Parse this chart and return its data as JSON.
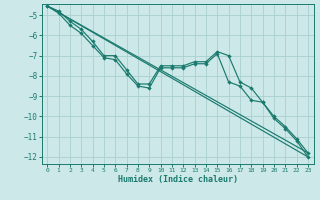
{
  "xlabel": "Humidex (Indice chaleur)",
  "bg_color": "#cce8e8",
  "grid_color": "#aacfcf",
  "line_color": "#1a7a6e",
  "xlim": [
    -0.5,
    23.5
  ],
  "ylim": [
    -12.35,
    -4.45
  ],
  "yticks": [
    -5,
    -6,
    -7,
    -8,
    -9,
    -10,
    -11,
    -12
  ],
  "xticks": [
    0,
    1,
    2,
    3,
    4,
    5,
    6,
    7,
    8,
    9,
    10,
    11,
    12,
    13,
    14,
    15,
    16,
    17,
    18,
    19,
    20,
    21,
    22,
    23
  ],
  "line1_x": [
    0,
    1,
    2,
    3,
    4,
    5,
    6,
    7,
    8,
    9,
    10,
    11,
    12,
    13,
    14,
    15,
    16,
    17,
    18,
    19,
    20,
    21,
    22,
    23
  ],
  "line1_y": [
    -4.55,
    -4.8,
    -5.3,
    -5.7,
    -6.3,
    -7.0,
    -7.0,
    -7.7,
    -8.4,
    -8.4,
    -7.5,
    -7.5,
    -7.5,
    -7.3,
    -7.3,
    -6.8,
    -7.0,
    -8.3,
    -8.6,
    -9.3,
    -10.0,
    -10.5,
    -11.1,
    -11.8
  ],
  "line2_x": [
    0,
    1,
    2,
    3,
    4,
    5,
    6,
    7,
    8,
    9,
    10,
    11,
    12,
    13,
    14,
    15,
    16,
    17,
    18,
    19,
    20,
    21,
    22,
    23
  ],
  "line2_y": [
    -4.55,
    -4.9,
    -5.5,
    -5.9,
    -6.5,
    -7.1,
    -7.2,
    -7.9,
    -8.5,
    -8.6,
    -7.6,
    -7.6,
    -7.6,
    -7.4,
    -7.4,
    -6.9,
    -8.3,
    -8.5,
    -9.2,
    -9.3,
    -10.1,
    -10.6,
    -11.2,
    -12.0
  ],
  "line3_x": [
    0,
    23
  ],
  "line3_y": [
    -4.55,
    -12.0
  ],
  "line4_x": [
    0,
    23
  ],
  "line4_y": [
    -4.55,
    -11.8
  ]
}
